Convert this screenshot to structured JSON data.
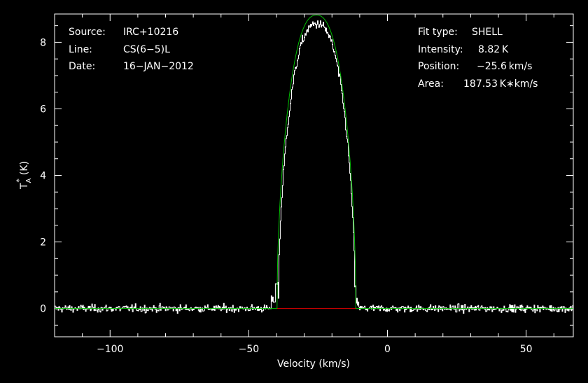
{
  "chart_data": {
    "type": "line",
    "xlabel": "Velocity (km/s)",
    "ylabel_main": "T",
    "ylabel_sub": "A",
    "ylabel_sup": "*",
    "ylabel_unit": "(K)",
    "xlim": [
      -120,
      67
    ],
    "ylim": [
      -0.85,
      8.85
    ],
    "x_ticks": [
      -100,
      -50,
      0,
      50
    ],
    "x_tick_labels": [
      "−100",
      "−50",
      "0",
      "50"
    ],
    "y_ticks": [
      0,
      2,
      4,
      6,
      8
    ],
    "y_tick_labels": [
      "0",
      "2",
      "4",
      "6",
      "8"
    ],
    "grid": false,
    "info_left": [
      {
        "label": "Source:",
        "value": "IRC+10216"
      },
      {
        "label": "Line:",
        "value": "CS(6−5)L"
      },
      {
        "label": "Date:",
        "value": "16−JAN−2012"
      }
    ],
    "info_right": [
      {
        "label": "Fit type:",
        "value": "SHELL"
      },
      {
        "label": "Intensity:",
        "value": "8.82 K"
      },
      {
        "label": "Position:",
        "value": "−25.6 km/s"
      },
      {
        "label": "Area:",
        "value": "187.53 K∗km/s"
      }
    ],
    "series": [
      {
        "kind": "observed",
        "color": "#ffffff",
        "x_range": [
          -120,
          67
        ],
        "noise_rms": 0.08,
        "profile": {
          "center": -25.6,
          "half_width": 13.8,
          "peak": 8.55,
          "horn_parameter": -0.25,
          "onset_step": [
            [
              -42,
              0.25
            ],
            [
              -40.5,
              0.75
            ],
            [
              -39.3,
              1.5
            ]
          ],
          "onset_tail": [
            [
              -11.5,
              0.6
            ],
            [
              -10.5,
              0.2
            ]
          ]
        }
      },
      {
        "kind": "fit",
        "name": "SHELL fit",
        "color": "#00c000",
        "center": -25.6,
        "half_width": 14.2,
        "peak": 8.82,
        "horn_parameter": -0.25
      },
      {
        "kind": "baseline",
        "color": "#e00000",
        "x": [
          -39.8,
          -11.4
        ],
        "y": [
          0,
          0
        ]
      }
    ]
  }
}
